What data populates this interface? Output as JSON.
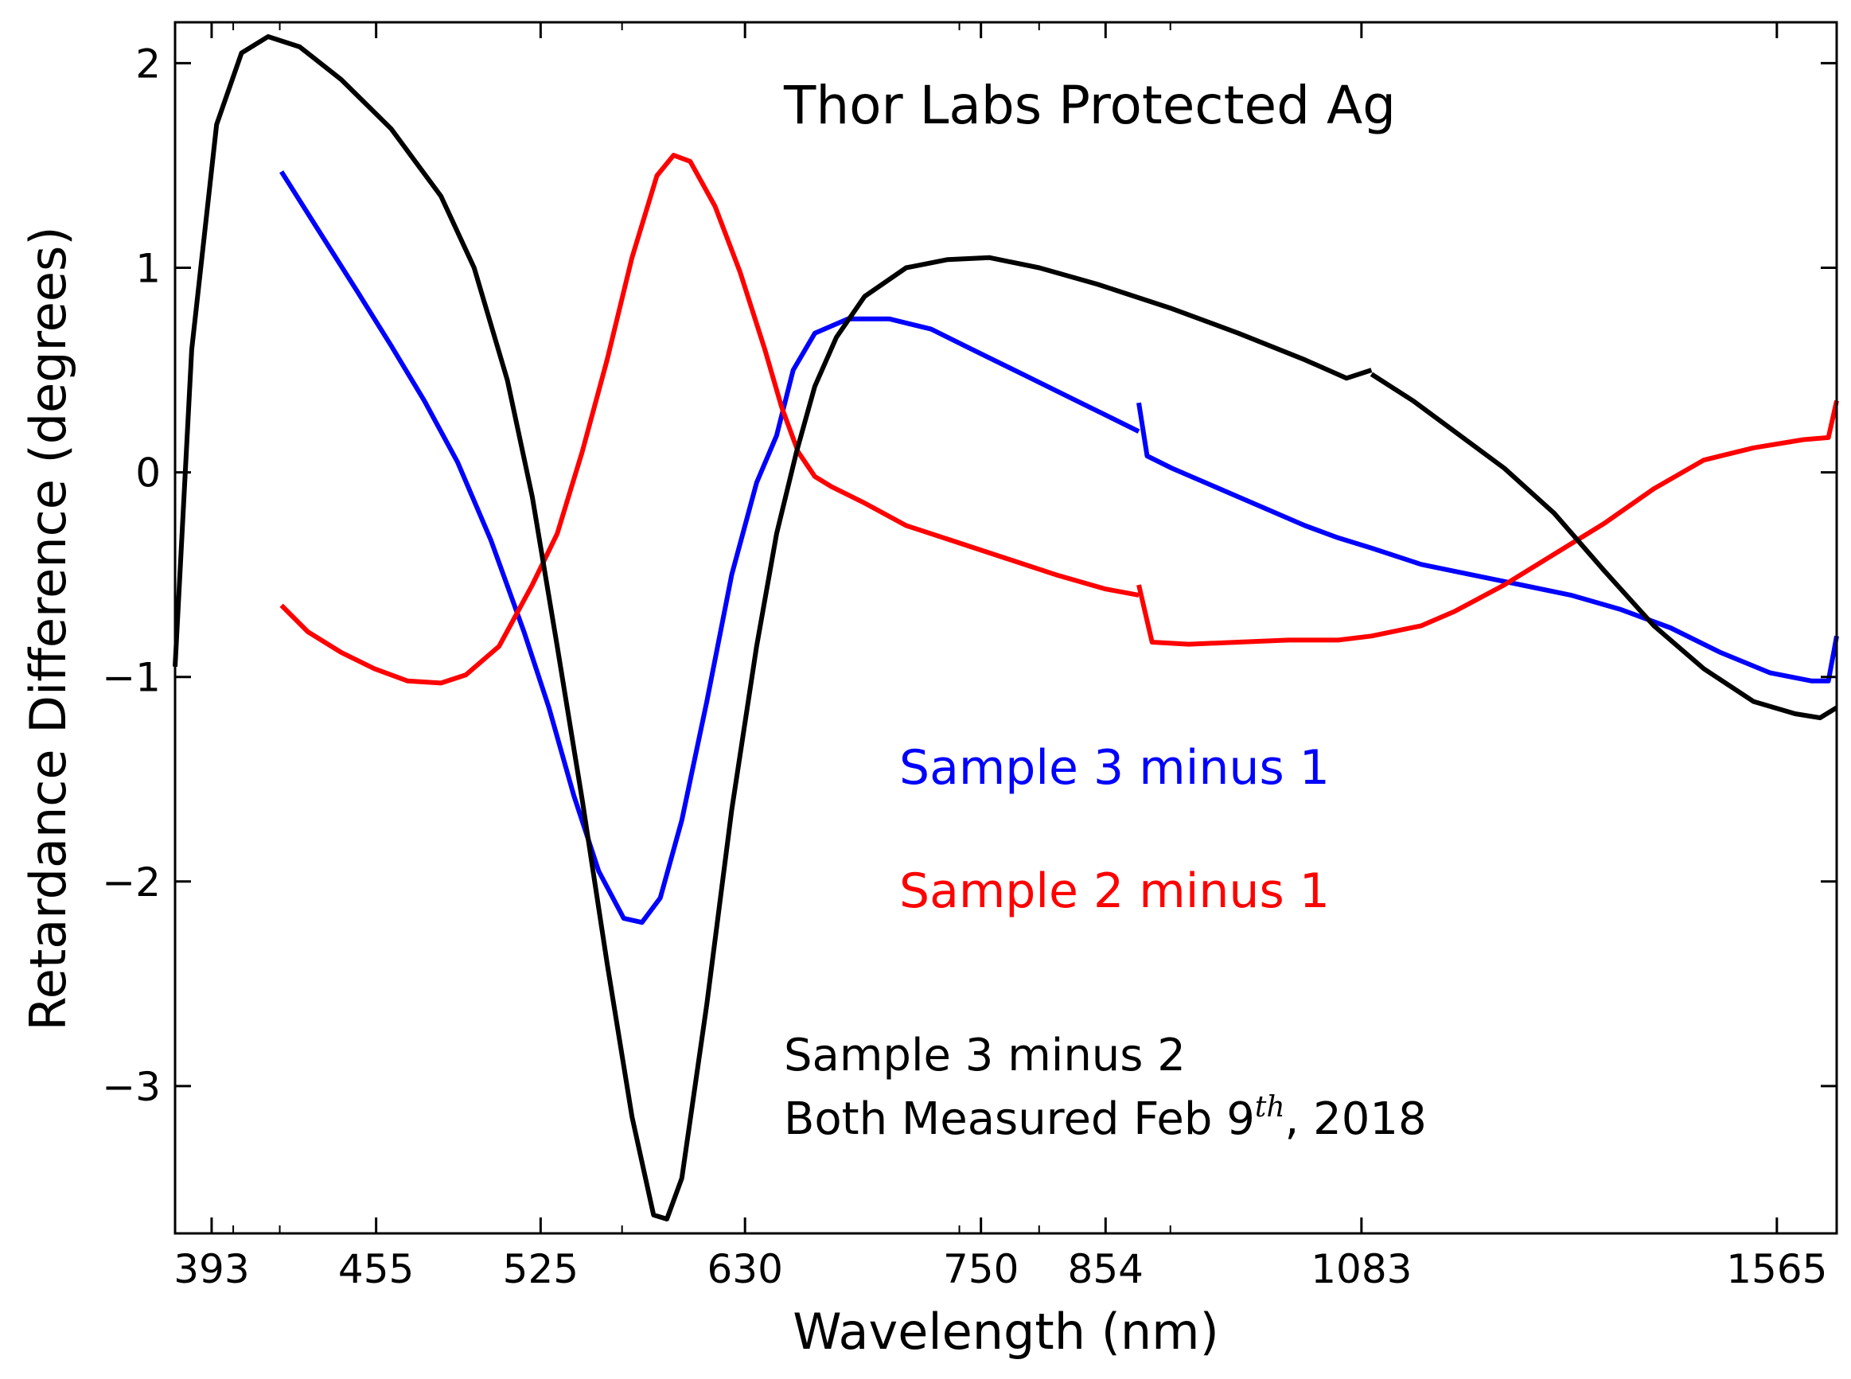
{
  "chart_data": {
    "type": "line",
    "title": "Thor Labs Protected Ag",
    "xlabel": "Wavelength (nm)",
    "ylabel": "Retardance Difference (degrees)",
    "xlim": [
      0,
      1000
    ],
    "ylim": [
      -3.72,
      2.2
    ],
    "x_ticks": [
      {
        "label": "393",
        "pos": 22
      },
      {
        "label": "455",
        "pos": 121
      },
      {
        "label": "525",
        "pos": 220
      },
      {
        "label": "630",
        "pos": 343
      },
      {
        "label": "750",
        "pos": 485
      },
      {
        "label": "854",
        "pos": 560
      },
      {
        "label": "1083",
        "pos": 714
      },
      {
        "label": "1565",
        "pos": 964
      }
    ],
    "x_minor_ticks": [
      35,
      63,
      269,
      472,
      520,
      599
    ],
    "y_ticks": [
      {
        "label": "2",
        "value": 2
      },
      {
        "label": "1",
        "value": 1
      },
      {
        "label": "0",
        "value": 0
      },
      {
        "label": "−1",
        "value": -1
      },
      {
        "label": "−2",
        "value": -2
      },
      {
        "label": "−3",
        "value": -3
      }
    ],
    "series": [
      {
        "name": "Sample 3 minus 1",
        "color": "#0000ff",
        "segments": [
          [
            [
              64,
              1.47
            ],
            [
              85,
              1.2
            ],
            [
              110,
              0.88
            ],
            [
              130,
              0.62
            ],
            [
              150,
              0.35
            ],
            [
              170,
              0.05
            ],
            [
              190,
              -0.33
            ],
            [
              210,
              -0.78
            ],
            [
              225,
              -1.15
            ],
            [
              240,
              -1.58
            ],
            [
              255,
              -1.95
            ],
            [
              270,
              -2.18
            ],
            [
              281,
              -2.2
            ],
            [
              292,
              -2.08
            ],
            [
              305,
              -1.7
            ],
            [
              320,
              -1.12
            ],
            [
              335,
              -0.5
            ],
            [
              350,
              -0.05
            ],
            [
              362,
              0.18
            ],
            [
              372,
              0.5
            ],
            [
              385,
              0.68
            ],
            [
              405,
              0.75
            ],
            [
              430,
              0.75
            ],
            [
              455,
              0.7
            ],
            [
              480,
              0.6
            ],
            [
              510,
              0.48
            ],
            [
              540,
              0.36
            ],
            [
              560,
              0.28
            ],
            [
              580,
              0.2
            ]
          ],
          [
            [
              580,
              0.34
            ],
            [
              585,
              0.08
            ],
            [
              600,
              0.02
            ],
            [
              620,
              -0.05
            ],
            [
              640,
              -0.12
            ],
            [
              660,
              -0.19
            ],
            [
              680,
              -0.26
            ],
            [
              700,
              -0.32
            ],
            [
              720,
              -0.37
            ],
            [
              750,
              -0.45
            ],
            [
              780,
              -0.5
            ],
            [
              810,
              -0.55
            ],
            [
              840,
              -0.6
            ],
            [
              870,
              -0.67
            ],
            [
              900,
              -0.76
            ],
            [
              930,
              -0.88
            ],
            [
              960,
              -0.98
            ],
            [
              985,
              -1.02
            ],
            [
              995,
              -1.02
            ],
            [
              1000,
              -0.8
            ]
          ]
        ]
      },
      {
        "name": "Sample 2 minus 1",
        "color": "#ff0000",
        "segments": [
          [
            [
              64,
              -0.65
            ],
            [
              80,
              -0.78
            ],
            [
              100,
              -0.88
            ],
            [
              120,
              -0.96
            ],
            [
              140,
              -1.02
            ],
            [
              160,
              -1.03
            ],
            [
              175,
              -0.99
            ],
            [
              195,
              -0.85
            ],
            [
              215,
              -0.55
            ],
            [
              230,
              -0.3
            ],
            [
              245,
              0.1
            ],
            [
              260,
              0.55
            ],
            [
              275,
              1.05
            ],
            [
              290,
              1.45
            ],
            [
              300,
              1.55
            ],
            [
              310,
              1.52
            ],
            [
              325,
              1.3
            ],
            [
              340,
              0.98
            ],
            [
              355,
              0.6
            ],
            [
              365,
              0.32
            ],
            [
              375,
              0.1
            ],
            [
              385,
              -0.02
            ],
            [
              395,
              -0.07
            ],
            [
              415,
              -0.15
            ],
            [
              440,
              -0.26
            ],
            [
              470,
              -0.34
            ],
            [
              500,
              -0.42
            ],
            [
              530,
              -0.5
            ],
            [
              560,
              -0.57
            ],
            [
              580,
              -0.6
            ]
          ],
          [
            [
              580,
              -0.55
            ],
            [
              588,
              -0.83
            ],
            [
              610,
              -0.84
            ],
            [
              640,
              -0.83
            ],
            [
              670,
              -0.82
            ],
            [
              700,
              -0.82
            ],
            [
              720,
              -0.8
            ],
            [
              750,
              -0.75
            ],
            [
              770,
              -0.68
            ],
            [
              800,
              -0.55
            ],
            [
              830,
              -0.4
            ],
            [
              860,
              -0.25
            ],
            [
              890,
              -0.08
            ],
            [
              920,
              0.06
            ],
            [
              950,
              0.12
            ],
            [
              980,
              0.16
            ],
            [
              995,
              0.17
            ],
            [
              1000,
              0.35
            ]
          ]
        ]
      },
      {
        "name": "Sample 3 minus 2",
        "color": "#000000",
        "segments": [
          [
            [
              0,
              -0.95
            ],
            [
              10,
              0.6
            ],
            [
              25,
              1.7
            ],
            [
              40,
              2.05
            ],
            [
              56,
              2.13
            ],
            [
              75,
              2.08
            ],
            [
              100,
              1.92
            ],
            [
              130,
              1.68
            ],
            [
              160,
              1.35
            ],
            [
              180,
              1.0
            ],
            [
              200,
              0.45
            ],
            [
              215,
              -0.12
            ],
            [
              230,
              -0.85
            ],
            [
              245,
              -1.6
            ],
            [
              260,
              -2.4
            ],
            [
              275,
              -3.15
            ],
            [
              288,
              -3.63
            ],
            [
              296,
              -3.65
            ],
            [
              305,
              -3.45
            ],
            [
              320,
              -2.6
            ],
            [
              335,
              -1.65
            ],
            [
              350,
              -0.85
            ],
            [
              362,
              -0.3
            ],
            [
              374,
              0.1
            ],
            [
              385,
              0.42
            ],
            [
              398,
              0.66
            ],
            [
              415,
              0.86
            ],
            [
              440,
              1.0
            ],
            [
              465,
              1.04
            ],
            [
              490,
              1.05
            ],
            [
              520,
              1.0
            ],
            [
              555,
              0.92
            ],
            [
              600,
              0.8
            ],
            [
              640,
              0.68
            ],
            [
              680,
              0.55
            ],
            [
              705,
              0.46
            ],
            [
              720,
              0.5
            ]
          ],
          [
            [
              720,
              0.48
            ],
            [
              745,
              0.35
            ],
            [
              770,
              0.2
            ],
            [
              800,
              0.02
            ],
            [
              830,
              -0.2
            ],
            [
              860,
              -0.48
            ],
            [
              890,
              -0.75
            ],
            [
              920,
              -0.96
            ],
            [
              950,
              -1.12
            ],
            [
              975,
              -1.18
            ],
            [
              990,
              -1.2
            ],
            [
              1000,
              -1.15
            ]
          ]
        ]
      }
    ],
    "annotations": {
      "blue_label": "Sample 3 minus 1",
      "red_label": "Sample 2 minus 1",
      "black_line1": "Sample 3 minus 2",
      "black_line2_prefix": "Both Measured Feb 9",
      "black_line2_sup": "th",
      "black_line2_suffix": ", 2018"
    }
  }
}
